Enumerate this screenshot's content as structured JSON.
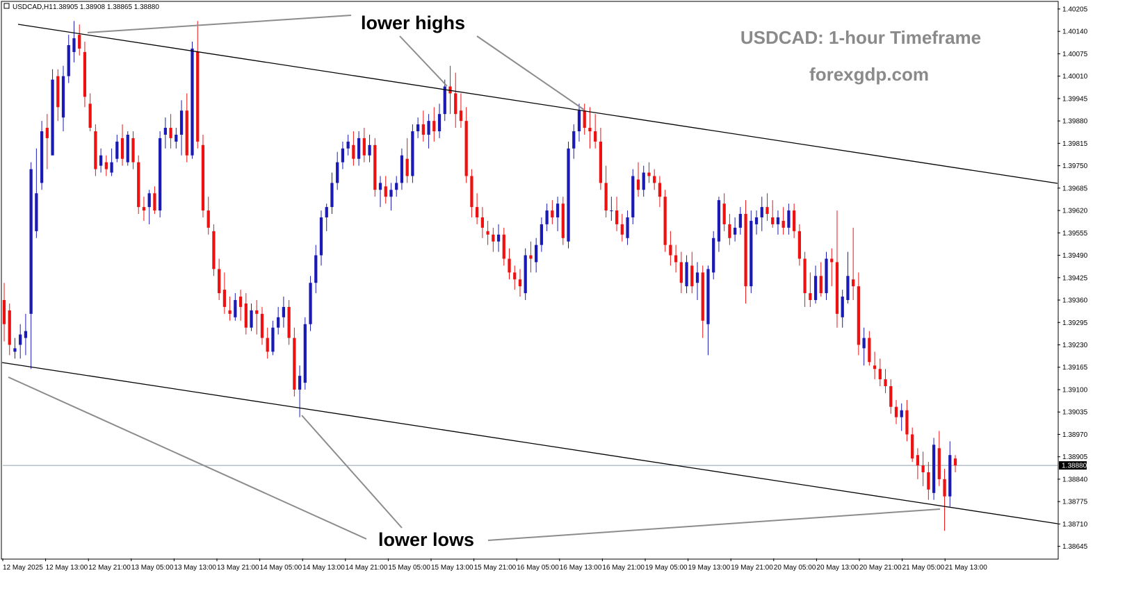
{
  "header": {
    "symbol": "USDCAD,H1",
    "ohlc": "1.38905 1.38908 1.38865 1.38880"
  },
  "watermark": {
    "title": "USDCAD: 1-hour Timeframe",
    "site": "forexgdp.com"
  },
  "annotations": {
    "upper": "lower highs",
    "lower": "lower lows"
  },
  "colors": {
    "bull": "#1a1ab4",
    "bear": "#ee1111",
    "channel": "#000000",
    "annotation_line": "#8c8c8c",
    "current_price_line": "#8ca0b4",
    "price_tag_bg": "#000000",
    "price_tag_text": "#ffffff"
  },
  "chart_data": {
    "type": "candlestick",
    "symbol": "USDCAD",
    "timeframe": "H1",
    "ylim": [
      1.3861,
      1.40225
    ],
    "y_ticks": [
      "1.40205",
      "1.40140",
      "1.40075",
      "1.40010",
      "1.39945",
      "1.39880",
      "1.39815",
      "1.39750",
      "1.39685",
      "1.39620",
      "1.39555",
      "1.39490",
      "1.39425",
      "1.39360",
      "1.39295",
      "1.39230",
      "1.39165",
      "1.39100",
      "1.39035",
      "1.38970",
      "1.38905",
      "1.38840",
      "1.38775",
      "1.38710",
      "1.38645"
    ],
    "x_ticks": [
      "12 May 2025",
      "12 May 13:00",
      "12 May 21:00",
      "13 May 05:00",
      "13 May 13:00",
      "13 May 21:00",
      "14 May 05:00",
      "14 May 13:00",
      "14 May 21:00",
      "15 May 05:00",
      "15 May 13:00",
      "15 May 21:00",
      "16 May 05:00",
      "16 May 13:00",
      "16 May 21:00",
      "19 May 05:00",
      "19 May 13:00",
      "19 May 21:00",
      "20 May 05:00",
      "20 May 13:00",
      "20 May 21:00",
      "21 May 05:00",
      "21 May 13:00"
    ],
    "current_price": "1.38880",
    "candles": [
      [
        1.3936,
        1.3941,
        1.3924,
        1.3929
      ],
      [
        1.3933,
        1.3935,
        1.392,
        1.3923
      ],
      [
        1.3921,
        1.3925,
        1.3919,
        1.3922
      ],
      [
        1.3923,
        1.3929,
        1.3919,
        1.3926
      ],
      [
        1.3925,
        1.3932,
        1.392,
        1.3927
      ],
      [
        1.3932,
        1.3976,
        1.3916,
        1.3974
      ],
      [
        1.3956,
        1.398,
        1.3954,
        1.3967
      ],
      [
        1.397,
        1.3988,
        1.3968,
        1.3985
      ],
      [
        1.3986,
        1.399,
        1.3974,
        1.3983
      ],
      [
        1.3978,
        1.4003,
        1.3978,
        1.4
      ],
      [
        1.4001,
        1.4003,
        1.3988,
        1.3992
      ],
      [
        1.3989,
        1.4004,
        1.3985,
        1.4001
      ],
      [
        1.4001,
        1.4013,
        1.3999,
        1.401
      ],
      [
        1.4008,
        1.4017,
        1.4005,
        1.4012
      ],
      [
        1.4013,
        1.4016,
        1.4007,
        1.4009
      ],
      [
        1.4008,
        1.4011,
        1.3992,
        1.3995
      ],
      [
        1.3993,
        1.3996,
        1.3985,
        1.3986
      ],
      [
        1.3985,
        1.3987,
        1.3972,
        1.3974
      ],
      [
        1.3975,
        1.398,
        1.3973,
        1.3978
      ],
      [
        1.3976,
        1.3978,
        1.3972,
        1.3974
      ],
      [
        1.3973,
        1.398,
        1.3972,
        1.3976
      ],
      [
        1.3977,
        1.3984,
        1.3976,
        1.3982
      ],
      [
        1.3983,
        1.3987,
        1.3975,
        1.3977
      ],
      [
        1.3976,
        1.3985,
        1.3975,
        1.3984
      ],
      [
        1.3983,
        1.3985,
        1.3974,
        1.3976
      ],
      [
        1.3976,
        1.3978,
        1.3961,
        1.3963
      ],
      [
        1.3963,
        1.3966,
        1.3959,
        1.3962
      ],
      [
        1.3963,
        1.3968,
        1.3958,
        1.3967
      ],
      [
        1.3967,
        1.3969,
        1.3961,
        1.3962
      ],
      [
        1.3962,
        1.3985,
        1.396,
        1.3983
      ],
      [
        1.3984,
        1.3989,
        1.398,
        1.3986
      ],
      [
        1.3986,
        1.399,
        1.398,
        1.3983
      ],
      [
        1.3982,
        1.3986,
        1.398,
        1.3984
      ],
      [
        1.3984,
        1.3994,
        1.3978,
        1.3991
      ],
      [
        1.3991,
        1.3996,
        1.3976,
        1.3978
      ],
      [
        1.3978,
        1.4011,
        1.3977,
        1.4009
      ],
      [
        1.4008,
        1.4017,
        1.398,
        1.3982
      ],
      [
        1.3981,
        1.3984,
        1.396,
        1.3962
      ],
      [
        1.3962,
        1.3966,
        1.3955,
        1.3957
      ],
      [
        1.3956,
        1.3958,
        1.3943,
        1.3945
      ],
      [
        1.3945,
        1.3948,
        1.3936,
        1.3938
      ],
      [
        1.3939,
        1.3944,
        1.3932,
        1.3934
      ],
      [
        1.3933,
        1.3937,
        1.393,
        1.3932
      ],
      [
        1.3931,
        1.3938,
        1.393,
        1.3936
      ],
      [
        1.3937,
        1.3939,
        1.393,
        1.3934
      ],
      [
        1.3935,
        1.3938,
        1.3926,
        1.3928
      ],
      [
        1.3928,
        1.3935,
        1.3927,
        1.3933
      ],
      [
        1.3933,
        1.3936,
        1.3926,
        1.3932
      ],
      [
        1.3932,
        1.3934,
        1.3923,
        1.3925
      ],
      [
        1.3925,
        1.3928,
        1.3919,
        1.3921
      ],
      [
        1.3921,
        1.393,
        1.392,
        1.3928
      ],
      [
        1.3928,
        1.3934,
        1.3926,
        1.3931
      ],
      [
        1.3931,
        1.3937,
        1.3928,
        1.3934
      ],
      [
        1.3934,
        1.3936,
        1.3923,
        1.3925
      ],
      [
        1.3925,
        1.3928,
        1.3908,
        1.391
      ],
      [
        1.391,
        1.3917,
        1.3902,
        1.3914
      ],
      [
        1.3912,
        1.3931,
        1.391,
        1.3929
      ],
      [
        1.3929,
        1.3943,
        1.3927,
        1.3941
      ],
      [
        1.3941,
        1.3952,
        1.3938,
        1.3949
      ],
      [
        1.3949,
        1.3962,
        1.3946,
        1.396
      ],
      [
        1.396,
        1.3964,
        1.3956,
        1.3963
      ],
      [
        1.3963,
        1.3973,
        1.3961,
        1.397
      ],
      [
        1.397,
        1.3979,
        1.3968,
        1.3976
      ],
      [
        1.3976,
        1.3982,
        1.3974,
        1.398
      ],
      [
        1.398,
        1.3984,
        1.3978,
        1.3982
      ],
      [
        1.3981,
        1.3985,
        1.3975,
        1.3977
      ],
      [
        1.3977,
        1.3985,
        1.3975,
        1.3983
      ],
      [
        1.3983,
        1.3986,
        1.3976,
        1.3978
      ],
      [
        1.3978,
        1.3984,
        1.3976,
        1.3981
      ],
      [
        1.3981,
        1.3983,
        1.3966,
        1.3968
      ],
      [
        1.3968,
        1.3972,
        1.3963,
        1.397
      ],
      [
        1.3969,
        1.3972,
        1.3964,
        1.3966
      ],
      [
        1.3966,
        1.397,
        1.3962,
        1.3968
      ],
      [
        1.3968,
        1.3972,
        1.3966,
        1.397
      ],
      [
        1.397,
        1.398,
        1.3968,
        1.3978
      ],
      [
        1.3977,
        1.3983,
        1.397,
        1.3972
      ],
      [
        1.3972,
        1.3987,
        1.397,
        1.3985
      ],
      [
        1.3985,
        1.3989,
        1.3983,
        1.3987
      ],
      [
        1.3987,
        1.3991,
        1.3982,
        1.3984
      ],
      [
        1.3984,
        1.399,
        1.398,
        1.3988
      ],
      [
        1.3988,
        1.3992,
        1.3982,
        1.3985
      ],
      [
        1.3985,
        1.3993,
        1.3983,
        1.399
      ],
      [
        1.399,
        1.4,
        1.3988,
        1.3998
      ],
      [
        1.3998,
        1.4004,
        1.399,
        1.3996
      ],
      [
        1.3996,
        1.4002,
        1.3986,
        1.399
      ],
      [
        1.3991,
        1.3996,
        1.3986,
        1.3988
      ],
      [
        1.3988,
        1.3992,
        1.397,
        1.3972
      ],
      [
        1.3972,
        1.3974,
        1.396,
        1.3963
      ],
      [
        1.3963,
        1.3967,
        1.3958,
        1.396
      ],
      [
        1.396,
        1.3963,
        1.3954,
        1.3957
      ],
      [
        1.3956,
        1.3959,
        1.3952,
        1.3955
      ],
      [
        1.3955,
        1.3957,
        1.395,
        1.3953
      ],
      [
        1.3953,
        1.3958,
        1.395,
        1.3955
      ],
      [
        1.3955,
        1.3957,
        1.3946,
        1.3948
      ],
      [
        1.3948,
        1.3951,
        1.3942,
        1.3944
      ],
      [
        1.3944,
        1.3946,
        1.3939,
        1.3942
      ],
      [
        1.3942,
        1.3945,
        1.3937,
        1.394
      ],
      [
        1.3938,
        1.3951,
        1.3936,
        1.3949
      ],
      [
        1.3949,
        1.3953,
        1.3944,
        1.3948
      ],
      [
        1.3947,
        1.3954,
        1.3944,
        1.3952
      ],
      [
        1.3952,
        1.396,
        1.395,
        1.3958
      ],
      [
        1.3958,
        1.3964,
        1.3956,
        1.3962
      ],
      [
        1.3962,
        1.3965,
        1.3958,
        1.396
      ],
      [
        1.396,
        1.3966,
        1.3956,
        1.3964
      ],
      [
        1.3964,
        1.3966,
        1.3952,
        1.3954
      ],
      [
        1.3953,
        1.3982,
        1.3951,
        1.398
      ],
      [
        1.398,
        1.3987,
        1.3977,
        1.3985
      ],
      [
        1.3985,
        1.3993,
        1.3982,
        1.3991
      ],
      [
        1.3991,
        1.3993,
        1.3984,
        1.3986
      ],
      [
        1.3986,
        1.3992,
        1.398,
        1.3985
      ],
      [
        1.3985,
        1.399,
        1.398,
        1.3982
      ],
      [
        1.3982,
        1.3986,
        1.3968,
        1.397
      ],
      [
        1.397,
        1.3975,
        1.396,
        1.3962
      ],
      [
        1.3962,
        1.3966,
        1.3959,
        1.3962
      ],
      [
        1.3962,
        1.3966,
        1.3956,
        1.3958
      ],
      [
        1.3958,
        1.3961,
        1.3953,
        1.3955
      ],
      [
        1.3954,
        1.3962,
        1.3952,
        1.396
      ],
      [
        1.396,
        1.3974,
        1.3958,
        1.3972
      ],
      [
        1.3971,
        1.3976,
        1.3966,
        1.3968
      ],
      [
        1.3968,
        1.3975,
        1.3966,
        1.3973
      ],
      [
        1.3973,
        1.3976,
        1.397,
        1.3972
      ],
      [
        1.3972,
        1.3974,
        1.3968,
        1.397
      ],
      [
        1.397,
        1.3972,
        1.3963,
        1.3966
      ],
      [
        1.3966,
        1.3968,
        1.395,
        1.3952
      ],
      [
        1.3952,
        1.3956,
        1.3946,
        1.3949
      ],
      [
        1.3949,
        1.3952,
        1.3944,
        1.3947
      ],
      [
        1.3947,
        1.395,
        1.3938,
        1.3941
      ],
      [
        1.394,
        1.3949,
        1.3938,
        1.3947
      ],
      [
        1.3946,
        1.395,
        1.3938,
        1.394
      ],
      [
        1.3941,
        1.3947,
        1.3936,
        1.3944
      ],
      [
        1.3944,
        1.3946,
        1.3925,
        1.393
      ],
      [
        1.3929,
        1.3946,
        1.392,
        1.3945
      ],
      [
        1.3944,
        1.3956,
        1.3942,
        1.3954
      ],
      [
        1.3953,
        1.3966,
        1.395,
        1.3965
      ],
      [
        1.3964,
        1.3967,
        1.3956,
        1.3958
      ],
      [
        1.3958,
        1.3961,
        1.3952,
        1.3954
      ],
      [
        1.3955,
        1.396,
        1.3953,
        1.3957
      ],
      [
        1.3957,
        1.3963,
        1.3955,
        1.3961
      ],
      [
        1.3961,
        1.3965,
        1.3935,
        1.394
      ],
      [
        1.394,
        1.3962,
        1.3938,
        1.3959
      ],
      [
        1.3958,
        1.3962,
        1.3955,
        1.396
      ],
      [
        1.396,
        1.3966,
        1.3956,
        1.3963
      ],
      [
        1.3963,
        1.3967,
        1.3959,
        1.3961
      ],
      [
        1.396,
        1.3965,
        1.3957,
        1.3958
      ],
      [
        1.3958,
        1.3962,
        1.3955,
        1.396
      ],
      [
        1.3959,
        1.3963,
        1.3955,
        1.3957
      ],
      [
        1.3957,
        1.3964,
        1.3955,
        1.3962
      ],
      [
        1.3962,
        1.3964,
        1.3954,
        1.3956
      ],
      [
        1.3956,
        1.3958,
        1.3946,
        1.3948
      ],
      [
        1.3948,
        1.395,
        1.3934,
        1.3938
      ],
      [
        1.3938,
        1.3944,
        1.3934,
        1.3936
      ],
      [
        1.3936,
        1.3946,
        1.3935,
        1.3943
      ],
      [
        1.3943,
        1.3947,
        1.3937,
        1.3938
      ],
      [
        1.3938,
        1.395,
        1.3936,
        1.3948
      ],
      [
        1.3948,
        1.3951,
        1.394,
        1.3947
      ],
      [
        1.3947,
        1.3962,
        1.3928,
        1.3932
      ],
      [
        1.3931,
        1.3939,
        1.3928,
        1.3937
      ],
      [
        1.3936,
        1.395,
        1.3935,
        1.3943
      ],
      [
        1.3942,
        1.3957,
        1.3936,
        1.394
      ],
      [
        1.394,
        1.3944,
        1.392,
        1.3923
      ],
      [
        1.3922,
        1.3928,
        1.3917,
        1.3925
      ],
      [
        1.3925,
        1.3927,
        1.3917,
        1.3918
      ],
      [
        1.3917,
        1.3921,
        1.3913,
        1.3916
      ],
      [
        1.3916,
        1.3919,
        1.3911,
        1.3913
      ],
      [
        1.3913,
        1.3916,
        1.3909,
        1.3911
      ],
      [
        1.3911,
        1.3913,
        1.3903,
        1.3905
      ],
      [
        1.3905,
        1.3907,
        1.39,
        1.3902
      ],
      [
        1.3902,
        1.3906,
        1.3898,
        1.3904
      ],
      [
        1.3904,
        1.3907,
        1.3895,
        1.3897
      ],
      [
        1.3897,
        1.3899,
        1.3889,
        1.389
      ],
      [
        1.3891,
        1.3893,
        1.3884,
        1.3888
      ],
      [
        1.3888,
        1.3892,
        1.3882,
        1.3886
      ],
      [
        1.3886,
        1.3889,
        1.3878,
        1.3881
      ],
      [
        1.388,
        1.3896,
        1.3878,
        1.3894
      ],
      [
        1.3893,
        1.3898,
        1.3882,
        1.3884
      ],
      [
        1.3884,
        1.3887,
        1.3869,
        1.3879
      ],
      [
        1.3879,
        1.3895,
        1.3876,
        1.3891
      ],
      [
        1.389,
        1.3891,
        1.3886,
        1.3888
      ]
    ]
  }
}
